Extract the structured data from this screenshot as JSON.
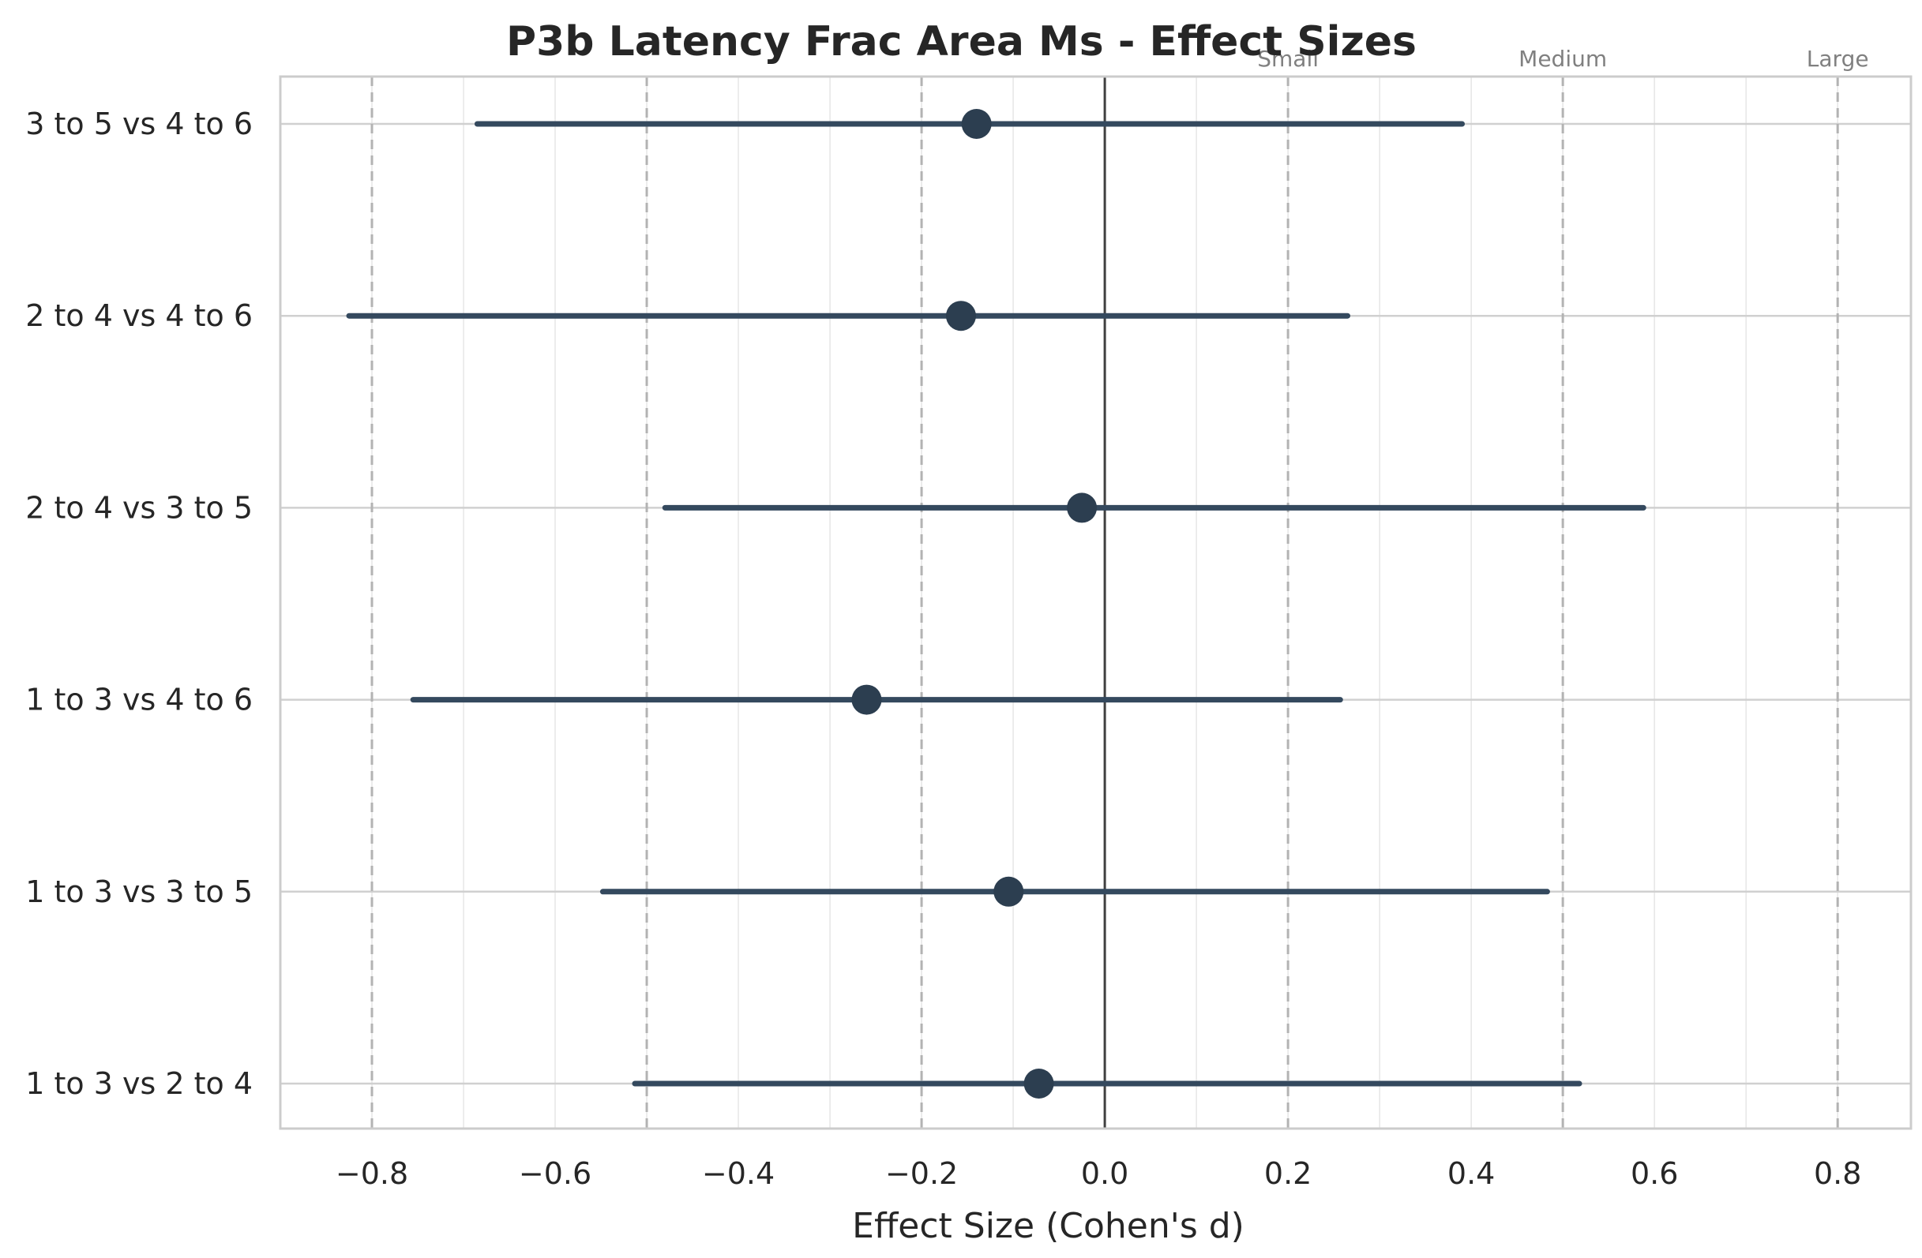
{
  "chart_data": {
    "type": "forest",
    "title": "P3b Latency Frac Area Ms - Effect Sizes",
    "xlabel": "Effect Size (Cohen's d)",
    "ylabel": "",
    "xlim": [
      -0.9,
      0.88
    ],
    "xticks": [
      -0.8,
      -0.6,
      -0.4,
      -0.2,
      0.0,
      0.2,
      0.4,
      0.6,
      0.8
    ],
    "xtick_labels": [
      "−0.8",
      "−0.6",
      "−0.4",
      "−0.2",
      "0.0",
      "0.2",
      "0.4",
      "0.6",
      "0.8"
    ],
    "grid": true,
    "zero_line": 0.0,
    "thresholds": [
      {
        "label": "Small",
        "value": 0.2
      },
      {
        "label": "Medium",
        "value": 0.5
      },
      {
        "label": "Large",
        "value": 0.8
      }
    ],
    "negative_threshold_lines": [
      -0.2,
      -0.5,
      -0.8
    ],
    "comparisons": [
      {
        "label": "3 to 5 vs 4 to 6",
        "d": -0.14,
        "ci_low": -0.685,
        "ci_high": 0.39
      },
      {
        "label": "2 to 4 vs 4 to 6",
        "d": -0.157,
        "ci_low": -0.825,
        "ci_high": 0.265
      },
      {
        "label": "2 to 4 vs 3 to 5",
        "d": -0.025,
        "ci_low": -0.48,
        "ci_high": 0.588
      },
      {
        "label": "1 to 3 vs 4 to 6",
        "d": -0.26,
        "ci_low": -0.755,
        "ci_high": 0.257
      },
      {
        "label": "1 to 3 vs 3 to 5",
        "d": -0.105,
        "ci_low": -0.548,
        "ci_high": 0.483
      },
      {
        "label": "1 to 3 vs 2 to 4",
        "d": -0.072,
        "ci_low": -0.513,
        "ci_high": 0.518
      }
    ],
    "colors": {
      "marker": "#2c3e50",
      "ci_line": "#34495e",
      "zero_line": "#404040",
      "threshold_line": "#b3b3b3",
      "grid": "#e6e6e6",
      "axes_frame": "#cccccc"
    }
  }
}
